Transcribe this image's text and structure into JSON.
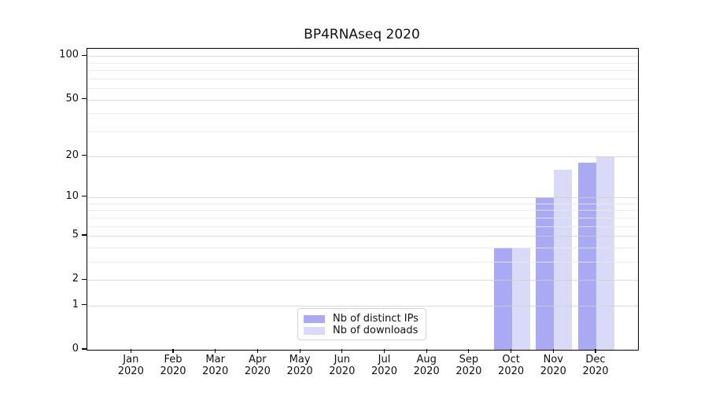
{
  "chart_data": {
    "type": "bar",
    "title": "BP4RNAseq 2020",
    "categories": [
      "Jan 2020",
      "Feb 2020",
      "Mar 2020",
      "Apr 2020",
      "May 2020",
      "Jun 2020",
      "Jul 2020",
      "Aug 2020",
      "Sep 2020",
      "Oct 2020",
      "Nov 2020",
      "Dec 2020"
    ],
    "series": [
      {
        "name": "Nb of distinct IPs",
        "color": "#a9a9f4",
        "values": [
          0,
          0,
          0,
          0,
          0,
          0,
          0,
          0,
          0,
          4,
          10,
          18
        ]
      },
      {
        "name": "Nb of downloads",
        "color": "#d9d9f8",
        "values": [
          0,
          0,
          0,
          0,
          0,
          0,
          0,
          0,
          0,
          4,
          16,
          20
        ]
      }
    ],
    "xlabel": "",
    "ylabel": "",
    "yscale": "log1p",
    "ylim": [
      0,
      112
    ],
    "yticks": [
      0,
      1,
      2,
      5,
      10,
      20,
      50,
      100
    ],
    "grid_major": [
      1,
      2,
      5,
      10,
      20,
      50,
      100
    ],
    "grid_minor": [
      3,
      4,
      6,
      7,
      8,
      9,
      30,
      40,
      60,
      70,
      80,
      90
    ],
    "grid": "both",
    "legend_position": "lower-center"
  }
}
